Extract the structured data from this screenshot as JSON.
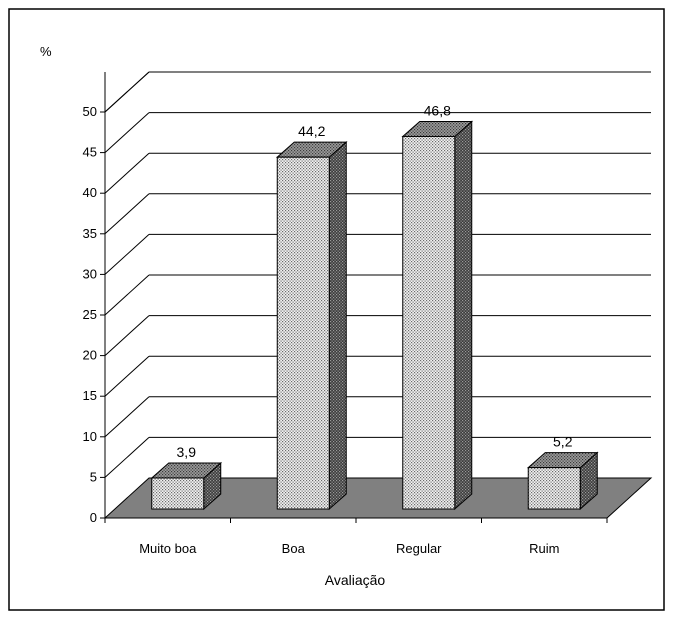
{
  "chart_data": {
    "type": "bar",
    "title": "",
    "ylabel": "%",
    "xlabel": "Avaliação",
    "categories": [
      "Muito boa",
      "Boa",
      "Regular",
      "Ruim"
    ],
    "values": [
      3.9,
      44.2,
      46.8,
      5.2
    ],
    "value_labels": [
      "3,9",
      "44,2",
      "46,8",
      "5,2"
    ],
    "yticks": [
      0,
      5,
      10,
      15,
      20,
      25,
      30,
      35,
      40,
      45,
      50
    ],
    "ylim": [
      0,
      50
    ],
    "grid": true,
    "style": "3d-box",
    "colors": {
      "bar_face": "#dcdcdc",
      "bar_side": "#5a5a5a",
      "floor": "#808080",
      "border": "#000000"
    }
  }
}
